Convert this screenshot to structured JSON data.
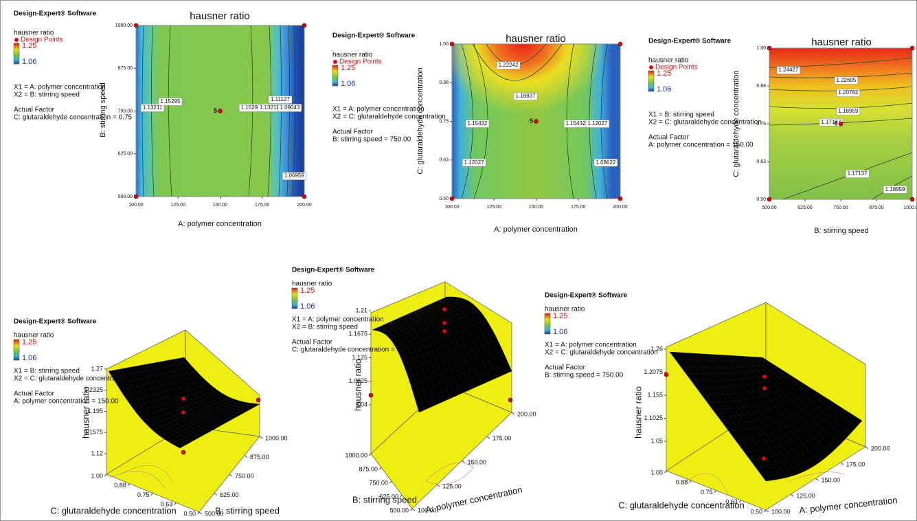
{
  "chart_data": [
    {
      "type": "contour",
      "software": "Design-Expert® Software",
      "response": "hausner ratio",
      "points_legend": "Design Points",
      "scale_high": 1.25,
      "scale_low": 1.06,
      "factors": [
        "X1 = A: polymer concentration",
        "X2 = B: stirring speed"
      ],
      "actual_factor_heading": "Actual Factor",
      "actual_factor": "C: glutaraldehyde concentration = 0.75",
      "title": "hausner ratio",
      "xlabel": "A: polymer concentration",
      "ylabel": "B: stirring speed",
      "xlim": [
        100,
        200
      ],
      "ylim": [
        500,
        1000
      ],
      "xticks": [
        {
          "value": 100,
          "label": "100.00"
        },
        {
          "value": 125,
          "label": "125.00"
        },
        {
          "value": 150,
          "label": "150.00"
        },
        {
          "value": 175,
          "label": "175.00"
        },
        {
          "value": 200,
          "label": "200.00"
        }
      ],
      "yticks": [
        {
          "value": 500,
          "label": "500.00"
        },
        {
          "value": 625,
          "label": "625.00"
        },
        {
          "value": 750,
          "label": "750.00"
        },
        {
          "value": 875,
          "label": "875.00"
        },
        {
          "value": 1000,
          "label": "1000.00"
        }
      ],
      "contour_labels": [
        {
          "value": 1.13211,
          "x": 109.8,
          "y": 759
        },
        {
          "value": 1.15295,
          "x": 120.4,
          "y": 777
        },
        {
          "value": 1.11127,
          "x": 185.7,
          "y": 783
        },
        {
          "value": 1.15295,
          "x": 168.2,
          "y": 759
        },
        {
          "value": 1.13211,
          "x": 179.2,
          "y": 759
        },
        {
          "value": 1.09043,
          "x": 191.4,
          "y": 759
        },
        {
          "value": 1.06959,
          "x": 194,
          "y": 560
        }
      ],
      "design_points": {
        "x": [
          100,
          100,
          150,
          200,
          200
        ],
        "y": [
          500,
          1000,
          750,
          500,
          1000
        ]
      },
      "replicates": 5
    },
    {
      "type": "contour",
      "software": "Design-Expert® Software",
      "response": "hausner ratio",
      "points_legend": "Design Points",
      "scale_high": 1.25,
      "scale_low": 1.06,
      "factors": [
        "X1 = A: polymer concentration",
        "X2 = C: glutaraldehyde concentration"
      ],
      "actual_factor_heading": "Actual Factor",
      "actual_factor": "B: stirring speed = 750.00",
      "title": "hausner ratio",
      "xlabel": "A: polymer concentration",
      "ylabel": "C: glutaraldehyde concentration",
      "xlim": [
        100,
        200
      ],
      "ylim": [
        0.5,
        1
      ],
      "xticks": [
        {
          "value": 100,
          "label": "100.00"
        },
        {
          "value": 125,
          "label": "125.00"
        },
        {
          "value": 150,
          "label": "150.00"
        },
        {
          "value": 175,
          "label": "175.00"
        },
        {
          "value": 200,
          "label": "200.00"
        }
      ],
      "yticks": [
        {
          "value": 0.5,
          "label": "0.50"
        },
        {
          "value": 0.625,
          "label": "0.63"
        },
        {
          "value": 0.75,
          "label": "0.75"
        },
        {
          "value": 0.875,
          "label": "0.88"
        },
        {
          "value": 1,
          "label": "1.00"
        }
      ],
      "contour_labels": [
        {
          "value": 1.22242,
          "x": 133.5,
          "y": 0.931
        },
        {
          "value": 1.18837,
          "x": 143.7,
          "y": 0.831
        },
        {
          "value": 1.15432,
          "x": 115.1,
          "y": 0.742
        },
        {
          "value": 1.12027,
          "x": 113.1,
          "y": 0.616
        },
        {
          "value": 1.15432,
          "x": 173.5,
          "y": 0.742
        },
        {
          "value": 1.12027,
          "x": 186.5,
          "y": 0.742
        },
        {
          "value": 1.08622,
          "x": 191.4,
          "y": 0.616
        }
      ],
      "design_points": {
        "x": [
          100,
          100,
          150,
          200,
          200
        ],
        "y": [
          0.5,
          1,
          0.75,
          0.5,
          1
        ]
      },
      "replicates": 5
    },
    {
      "type": "contour",
      "software": "Design-Expert® Software",
      "response": "hausner ratio",
      "points_legend": "Design Points",
      "scale_high": 1.25,
      "scale_low": 1.06,
      "factors": [
        "X1 = B: stirring speed",
        "X2 = C: glutaraldehyde concentration"
      ],
      "actual_factor_heading": "Actual Factor",
      "actual_factor": "A: polymer concentration = 150.00",
      "title": "hausner ratio",
      "xlabel": "B: stirring speed",
      "ylabel": "C: glutaraldehyde concentration",
      "xlim": [
        500,
        1000
      ],
      "ylim": [
        0.5,
        1
      ],
      "xticks": [
        {
          "value": 500,
          "label": "500.00"
        },
        {
          "value": 625,
          "label": "625.00"
        },
        {
          "value": 750,
          "label": "750.00"
        },
        {
          "value": 875,
          "label": "875.00"
        },
        {
          "value": 1000,
          "label": "1000.00"
        }
      ],
      "yticks": [
        {
          "value": 0.5,
          "label": "0.50"
        },
        {
          "value": 0.625,
          "label": "0.63"
        },
        {
          "value": 0.75,
          "label": "0.75"
        },
        {
          "value": 0.875,
          "label": "0.88"
        },
        {
          "value": 1,
          "label": "1.00"
        }
      ],
      "contour_labels": [
        {
          "value": 1.24427,
          "x": 567,
          "y": 0.927
        },
        {
          "value": 1.22605,
          "x": 769,
          "y": 0.893
        },
        {
          "value": 1.20782,
          "x": 776,
          "y": 0.852
        },
        {
          "value": 1.18959,
          "x": 776,
          "y": 0.791
        },
        {
          "value": 1.17137,
          "x": 716,
          "y": 0.755
        },
        {
          "value": 1.17137,
          "x": 808,
          "y": 0.584
        },
        {
          "value": 1.18959,
          "x": 940,
          "y": 0.532
        }
      ],
      "design_points": {
        "x": [
          500,
          500,
          750,
          1000,
          1000
        ],
        "y": [
          0.5,
          1,
          0.75,
          0.5,
          1
        ]
      },
      "replicates": 5
    },
    {
      "type": "surface",
      "software": "Design-Expert® Software",
      "response": "hausner ratio",
      "scale_high": 1.25,
      "scale_low": 1.06,
      "factors": [
        "X1 = B: stirring speed",
        "X2 = C: glutaraldehyde concentration"
      ],
      "actual_factor_heading": "Actual Factor",
      "actual_factor": "A: polymer concentration = 150.00",
      "zlabel": "hausner ratio",
      "xlabel": "B: stirring speed",
      "ylabel": "C: glutaraldehyde concentration",
      "xlim": [
        500,
        1000
      ],
      "ylim": [
        0.5,
        1
      ],
      "zlim": [
        1.12,
        1.27
      ],
      "xticks": [
        {
          "value": 500,
          "label": "500.00"
        },
        {
          "value": 625,
          "label": "625.00"
        },
        {
          "value": 750,
          "label": "750.00"
        },
        {
          "value": 875,
          "label": "875.00"
        },
        {
          "value": 1000,
          "label": "1000.00"
        }
      ],
      "yticks": [
        {
          "value": 0.5,
          "label": "0.50"
        },
        {
          "value": 0.625,
          "label": "0.63"
        },
        {
          "value": 0.75,
          "label": "0.75"
        },
        {
          "value": 0.875,
          "label": "0.88"
        },
        {
          "value": 1,
          "label": "1.00"
        }
      ],
      "zticks": [
        1.12,
        1.1575,
        1.195,
        1.2325,
        1.27
      ]
    },
    {
      "type": "surface",
      "software": "Design-Expert® Software",
      "response": "hausner ratio",
      "scale_high": 1.25,
      "scale_low": 1.06,
      "factors": [
        "X1 = A: polymer concentration",
        "X2 = B: stirring speed"
      ],
      "actual_factor_heading": "Actual Factor",
      "actual_factor": "C: glutaraldehyde concentration = 0.75",
      "zlabel": "hausner ratio",
      "xlabel": "A: polymer concentration",
      "ylabel": "B: stirring speed",
      "xlim": [
        100,
        200
      ],
      "ylim": [
        500,
        1000
      ],
      "zlim": [
        1.04,
        1.21
      ],
      "xticks": [
        {
          "value": 100,
          "label": "100.00"
        },
        {
          "value": 125,
          "label": "125.00"
        },
        {
          "value": 150,
          "label": "150.00"
        },
        {
          "value": 175,
          "label": "175.00"
        },
        {
          "value": 200,
          "label": "200.00"
        }
      ],
      "yticks": [
        {
          "value": 500,
          "label": "500.00"
        },
        {
          "value": 625,
          "label": "625.00"
        },
        {
          "value": 750,
          "label": "750.00"
        },
        {
          "value": 875,
          "label": "875.00"
        },
        {
          "value": 1000,
          "label": "1000.00"
        }
      ],
      "zticks": [
        1.04,
        1.0825,
        1.125,
        1.1675,
        1.21
      ]
    },
    {
      "type": "surface",
      "software": "Design-Expert® Software",
      "response": "hausner ratio",
      "scale_high": 1.25,
      "scale_low": 1.06,
      "factors": [
        "X1 = A: polymer concentration",
        "X2 = C: glutaraldehyde concentration"
      ],
      "actual_factor_heading": "Actual Factor",
      "actual_factor": "B: stirring speed = 750.00",
      "zlabel": "hausner ratio",
      "xlabel": "A: polymer concentration",
      "ylabel": "C: glutaraldehyde concentration",
      "xlim": [
        100,
        200
      ],
      "ylim": [
        0.5,
        1
      ],
      "zlim": [
        1.05,
        1.26
      ],
      "xticks": [
        {
          "value": 100,
          "label": "100.00"
        },
        {
          "value": 125,
          "label": "125.00"
        },
        {
          "value": 150,
          "label": "150.00"
        },
        {
          "value": 175,
          "label": "175.00"
        },
        {
          "value": 200,
          "label": "200.00"
        }
      ],
      "yticks": [
        {
          "value": 0.5,
          "label": "0.50"
        },
        {
          "value": 0.625,
          "label": "0.63"
        },
        {
          "value": 0.75,
          "label": "0.75"
        },
        {
          "value": 0.875,
          "label": "0.88"
        },
        {
          "value": 1,
          "label": "1.00"
        }
      ],
      "zticks": [
        1.05,
        1.1025,
        1.155,
        1.2075,
        1.26
      ]
    }
  ]
}
